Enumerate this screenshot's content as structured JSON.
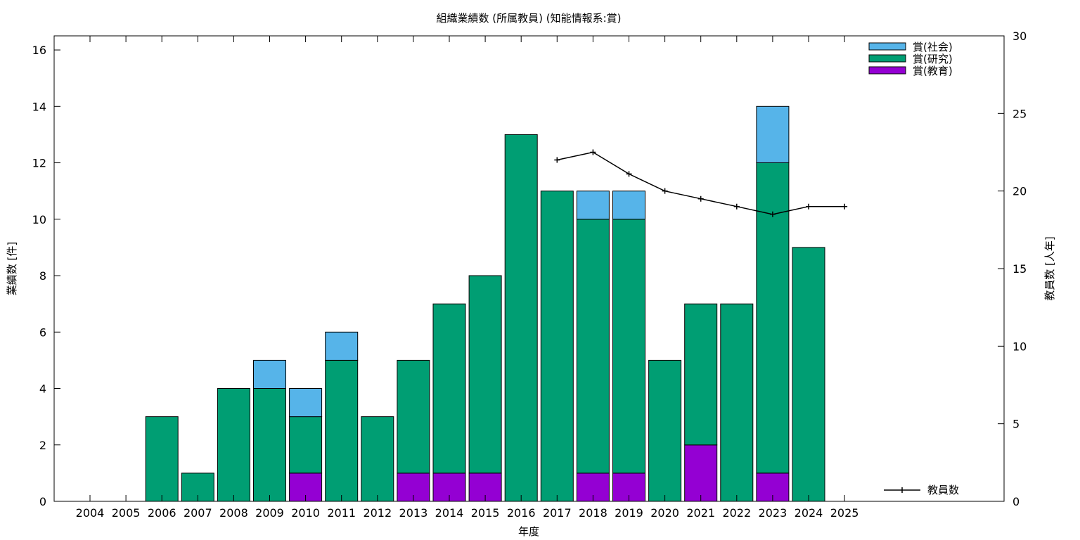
{
  "chart_data": {
    "type": "bar",
    "stacked": true,
    "title": "組織業績数 (所属教員) (知能情報系:賞)",
    "xlabel": "年度",
    "ylabel": "業績数 [件]",
    "y2label": "教員数 [人年]",
    "ylim": [
      0,
      16.5
    ],
    "y2lim": [
      0,
      30
    ],
    "yticks": [
      0,
      2,
      4,
      6,
      8,
      10,
      12,
      14,
      16
    ],
    "y2ticks": [
      0,
      5,
      10,
      15,
      20,
      25,
      30
    ],
    "grid": false,
    "legend_position": "top-right",
    "categories": [
      "2004",
      "2005",
      "2006",
      "2007",
      "2008",
      "2009",
      "2010",
      "2011",
      "2012",
      "2013",
      "2014",
      "2015",
      "2016",
      "2017",
      "2018",
      "2019",
      "2020",
      "2021",
      "2022",
      "2023",
      "2024",
      "2025"
    ],
    "series": [
      {
        "name": "賞(教育)",
        "color": "#9400d3",
        "values": [
          0,
          0,
          0,
          0,
          0,
          0,
          1,
          0,
          0,
          1,
          1,
          1,
          0,
          0,
          1,
          1,
          0,
          2,
          0,
          1,
          0,
          0
        ]
      },
      {
        "name": "賞(研究)",
        "color": "#009e73",
        "values": [
          0,
          0,
          3,
          1,
          4,
          4,
          2,
          5,
          3,
          4,
          6,
          7,
          13,
          11,
          9,
          9,
          5,
          5,
          7,
          11,
          9,
          0
        ]
      },
      {
        "name": "賞(社会)",
        "color": "#56b4e9",
        "values": [
          0,
          0,
          0,
          0,
          0,
          1,
          1,
          1,
          0,
          0,
          0,
          0,
          0,
          0,
          1,
          1,
          0,
          0,
          0,
          2,
          0,
          0
        ]
      }
    ],
    "legend_order": [
      "賞(社会)",
      "賞(研究)",
      "賞(教育)"
    ],
    "line_series": {
      "name": "教員数",
      "axis": "y2",
      "color": "#000000",
      "x": [
        "2017",
        "2018",
        "2019",
        "2020",
        "2021",
        "2022",
        "2023",
        "2024",
        "2025"
      ],
      "values": [
        22.0,
        22.5,
        21.1,
        20.0,
        19.5,
        19.0,
        18.5,
        19.0,
        19.0
      ]
    }
  }
}
